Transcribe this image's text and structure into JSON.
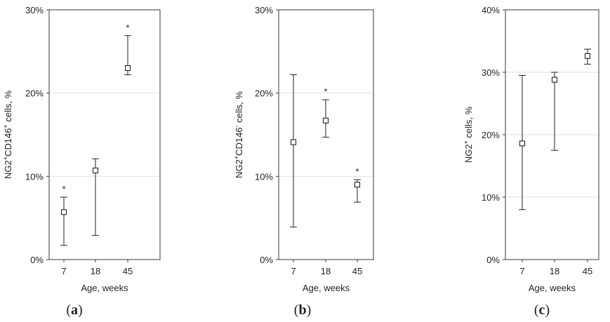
{
  "chart_data": [
    {
      "type": "scatter",
      "panel_label": "a",
      "xlabel": "Age, weeks",
      "ylabel_main": "NG2",
      "ylabel_sup1": "+",
      "ylabel_mid": "CD146",
      "ylabel_sup2": "+",
      "ylabel_tail": " cells, %",
      "categories": [
        "7",
        "18",
        "45"
      ],
      "yticks": [
        "0%",
        "10%",
        "20%",
        "30%"
      ],
      "ylim": [
        0,
        30
      ],
      "grid": true,
      "values": [
        5.7,
        10.7,
        23.0
      ],
      "err_low": [
        1.7,
        2.9,
        22.2
      ],
      "err_high": [
        7.5,
        12.1,
        26.9
      ],
      "markers": [
        "*",
        "",
        "*"
      ]
    },
    {
      "type": "scatter",
      "panel_label": "b",
      "xlabel": "Age, weeks",
      "ylabel_main": "NG2",
      "ylabel_sup1": "+",
      "ylabel_mid": "CD146",
      "ylabel_sup2": "-",
      "ylabel_tail": " cells, %",
      "categories": [
        "7",
        "18",
        "45"
      ],
      "yticks": [
        "0%",
        "10%",
        "20%",
        "30%"
      ],
      "ylim": [
        0,
        30
      ],
      "grid": true,
      "values": [
        14.1,
        16.7,
        9.0
      ],
      "err_low": [
        3.9,
        14.7,
        6.9
      ],
      "err_high": [
        22.2,
        19.2,
        9.6
      ],
      "markers": [
        "",
        "*",
        "*"
      ]
    },
    {
      "type": "scatter",
      "panel_label": "c",
      "xlabel": "Age, weeks",
      "ylabel_main": "NG2",
      "ylabel_sup1": "+",
      "ylabel_mid": "",
      "ylabel_sup2": "",
      "ylabel_tail": " cells, %",
      "categories": [
        "7",
        "18",
        "45"
      ],
      "yticks": [
        "0%",
        "10%",
        "20%",
        "30%",
        "40%"
      ],
      "ylim": [
        0,
        40
      ],
      "grid": true,
      "values": [
        18.6,
        28.8,
        32.6
      ],
      "err_low": [
        8.0,
        17.5,
        31.3
      ],
      "err_high": [
        29.5,
        30.0,
        33.7
      ],
      "markers": [
        "",
        "",
        ""
      ]
    }
  ]
}
